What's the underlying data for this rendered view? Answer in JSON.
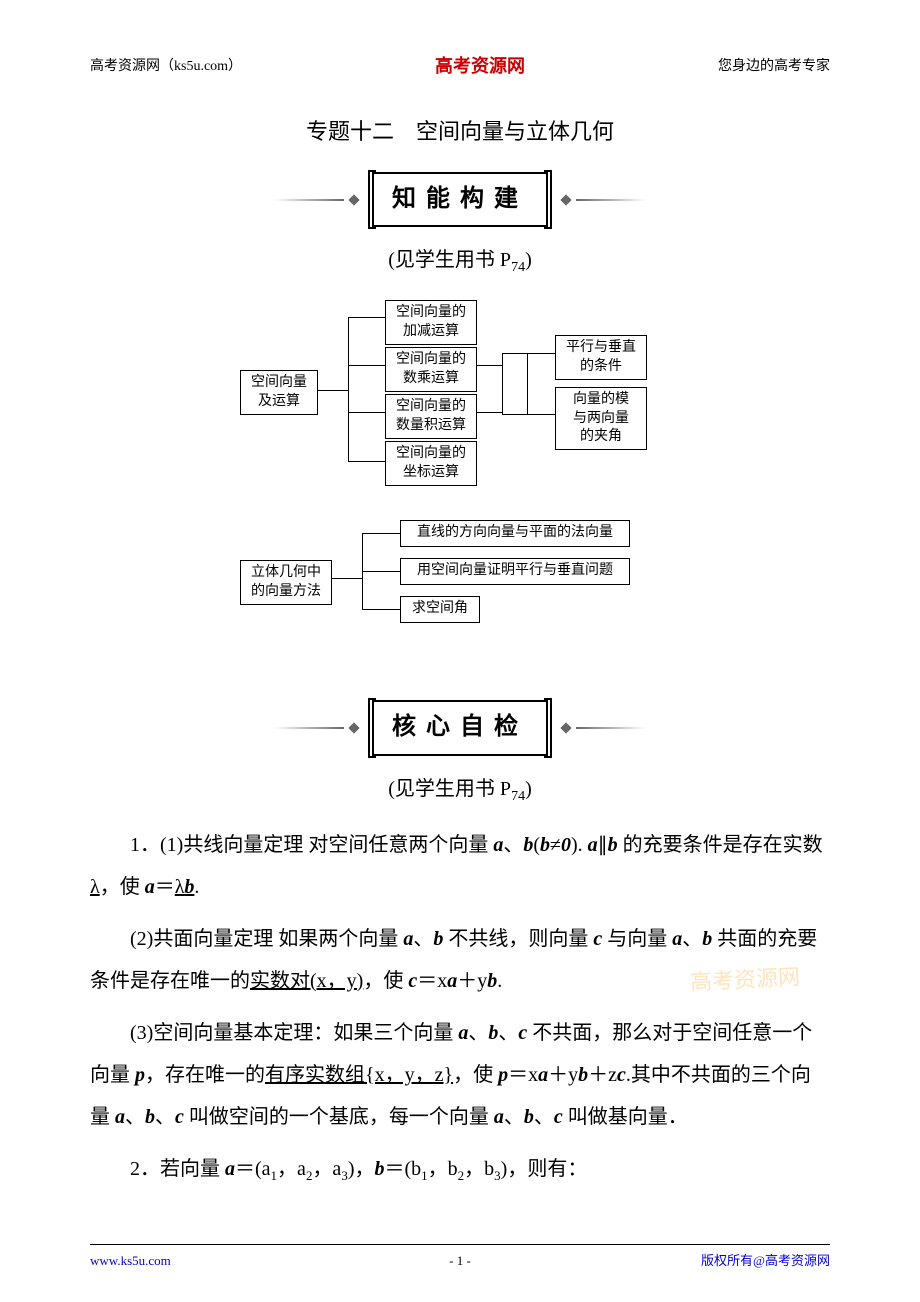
{
  "header": {
    "left": "高考资源网（ks5u.com）",
    "center": "高考资源网",
    "right": "您身边的高考专家"
  },
  "title": "专题十二　空间向量与立体几何",
  "banner1": {
    "text": "知能构建"
  },
  "seebook1": {
    "prefix": "(见学生用书 P",
    "pagenum": "74",
    "suffix": ")"
  },
  "diagram": {
    "root1": "空间向量\n及运算",
    "l1_1": "空间向量的\n加减运算",
    "l1_2": "空间向量的\n数乘运算",
    "l1_3": "空间向量的\n数量积运算",
    "l1_4": "空间向量的\n坐标运算",
    "r1_1": "平行与垂直\n的条件",
    "r1_2": "向量的模\n与两向量\n的夹角",
    "root2": "立体几何中\n的向量方法",
    "l2_1": "直线的方向向量与平面的法向量",
    "l2_2": "用空间向量证明平行与垂直问题",
    "l2_3": "求空间角",
    "box_style": {
      "border_color": "#000000",
      "bg_color": "#ffffff",
      "font_size": 14
    }
  },
  "banner2": {
    "text": "核心自检"
  },
  "seebook2": {
    "prefix": "(见学生用书 P",
    "pagenum": "74",
    "suffix": ")"
  },
  "content": {
    "p1_a": "1．(1)共线向量定理 对空间任意两个向量 ",
    "p1_b": "、",
    "p1_c": "(",
    "p1_d": "≠",
    "p1_zero": "0",
    "p1_e": "). ",
    "p1_f": "∥",
    "p1_g": " 的充要条件是存在实数",
    "p1_lambda": "λ",
    "p1_h": "，使 ",
    "p1_i": "＝",
    "p1_lambda2": "λ",
    "p1_j": ".",
    "p2_a": "(2)共面向量定理 如果两个向量 ",
    "p2_b": "、",
    "p2_c": " 不共线，则向量 ",
    "p2_d": " 与向量 ",
    "p2_e": "、",
    "p2_f": " 共面的充要条件是存在唯一的",
    "p2_pair": "实数对(x，y)",
    "p2_g": "，使 ",
    "p2_h": "＝x",
    "p2_i": "＋y",
    "p2_j": ".",
    "p3_a": "(3)空间向量基本定理：如果三个向量 ",
    "p3_b": "、",
    "p3_c": "、",
    "p3_d": " 不共面，那么对于空间任意一个向量 ",
    "p3_e": "，存在唯一的",
    "p3_tuple": "有序实数组{x，y，z}",
    "p3_f": "，使 ",
    "p3_g": "＝x",
    "p3_h": "＋y",
    "p3_i": "＋z",
    "p3_j": ".其中不共面的三个向量 ",
    "p3_k": "、",
    "p3_l": "、",
    "p3_m": " 叫做空间的一个基底，每一个向量 ",
    "p3_n": "、",
    "p3_o": "、",
    "p3_p": " 叫做基向量．",
    "p4_a": "2．若向量 ",
    "p4_b": "＝(a",
    "p4_s1": "1",
    "p4_c": "，a",
    "p4_s2": "2",
    "p4_d": "，a",
    "p4_s3": "3",
    "p4_e": ")，",
    "p4_f": "＝(b",
    "p4_s4": "1",
    "p4_g": "，b",
    "p4_s5": "2",
    "p4_h": "，b",
    "p4_s6": "3",
    "p4_i": ")，则有：",
    "vec_a": "a",
    "vec_b": "b",
    "vec_c": "c",
    "vec_p": "p"
  },
  "watermark": "高考资源网",
  "footer": {
    "left": "www.ks5u.com",
    "center": "- 1 -",
    "right": "版权所有@高考资源网"
  },
  "colors": {
    "text": "#000000",
    "link": "#0000cc",
    "brand": "#cc0000",
    "watermark": "#ffd8a0",
    "bg": "#ffffff"
  }
}
